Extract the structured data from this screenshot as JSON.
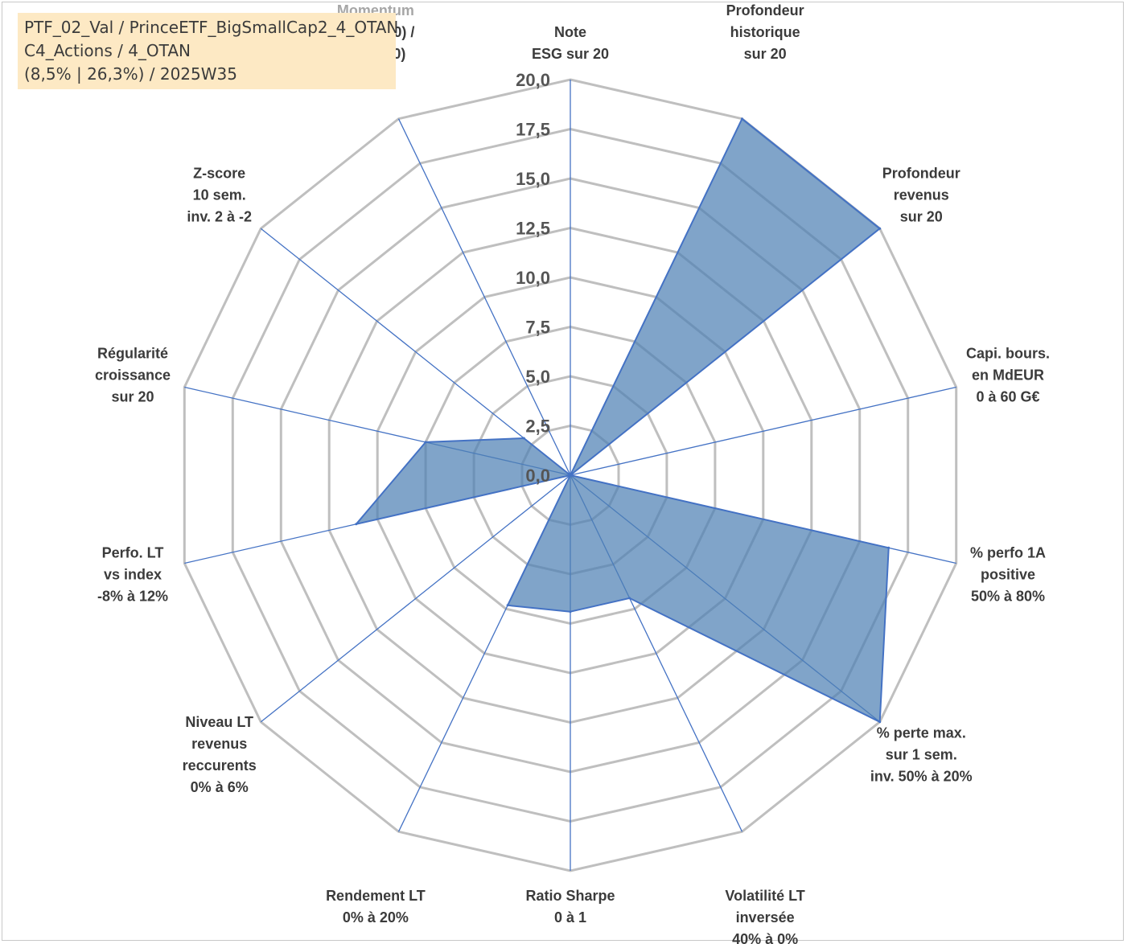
{
  "info": {
    "line1": "PTF_02_Val / PrinceETF_BigSmallCap2_4_OTAN",
    "line2": "C4_Actions / 4_OTAN",
    "line3": "(8,5% | 26,3%) / 2025W35"
  },
  "colors": {
    "grid": "#bfbfbf",
    "spoke": "#4472c4",
    "fill": "#4f81b4",
    "edge": "#4472c4"
  },
  "chart_data": {
    "type": "radar",
    "rmin": 0,
    "rmax": 20,
    "ticks": [
      "0,0",
      "2,5",
      "5,0",
      "7,5",
      "10,0",
      "12,5",
      "15,0",
      "17,5",
      "20,0"
    ],
    "axes": [
      {
        "lines": [
          "Note",
          "ESG sur 20"
        ]
      },
      {
        "lines": [
          "Profondeur",
          "historique",
          "sur 20"
        ]
      },
      {
        "lines": [
          "Profondeur",
          "revenus",
          "sur 20"
        ]
      },
      {
        "lines": [
          "Capi. bours.",
          "en MdEUR",
          "0 à 60 G€"
        ]
      },
      {
        "lines": [
          "% perfo 1A",
          "positive",
          "50% à 80%"
        ]
      },
      {
        "lines": [
          "% perte max.",
          "sur 1 sem.",
          "inv. 50% à 20%"
        ]
      },
      {
        "lines": [
          "Volatilité LT",
          "inversée",
          "40% à 0%"
        ]
      },
      {
        "lines": [
          "Ratio Sharpe",
          "0 à 1"
        ]
      },
      {
        "lines": [
          "Rendement LT",
          "0% à 20%"
        ]
      },
      {
        "lines": [
          "Niveau LT",
          "revenus",
          "reccurents",
          "0% à 6%"
        ]
      },
      {
        "lines": [
          "Perfo. LT",
          "vs index",
          "-8% à 12%"
        ]
      },
      {
        "lines": [
          "Régularité",
          "croissance",
          "sur 20"
        ]
      },
      {
        "lines": [
          "Z-score",
          "10 sem.",
          "inv. 2 à -2"
        ]
      },
      {
        "lines": [
          "Momentum",
          "Achat (20) /",
          "Vente (0)"
        ],
        "highlight_first": true
      }
    ],
    "values": [
      0.0,
      20.0,
      20.0,
      0.0,
      16.5,
      20.0,
      6.9,
      6.9,
      7.3,
      0.0,
      11.1,
      7.5,
      3.0,
      0.0
    ]
  }
}
